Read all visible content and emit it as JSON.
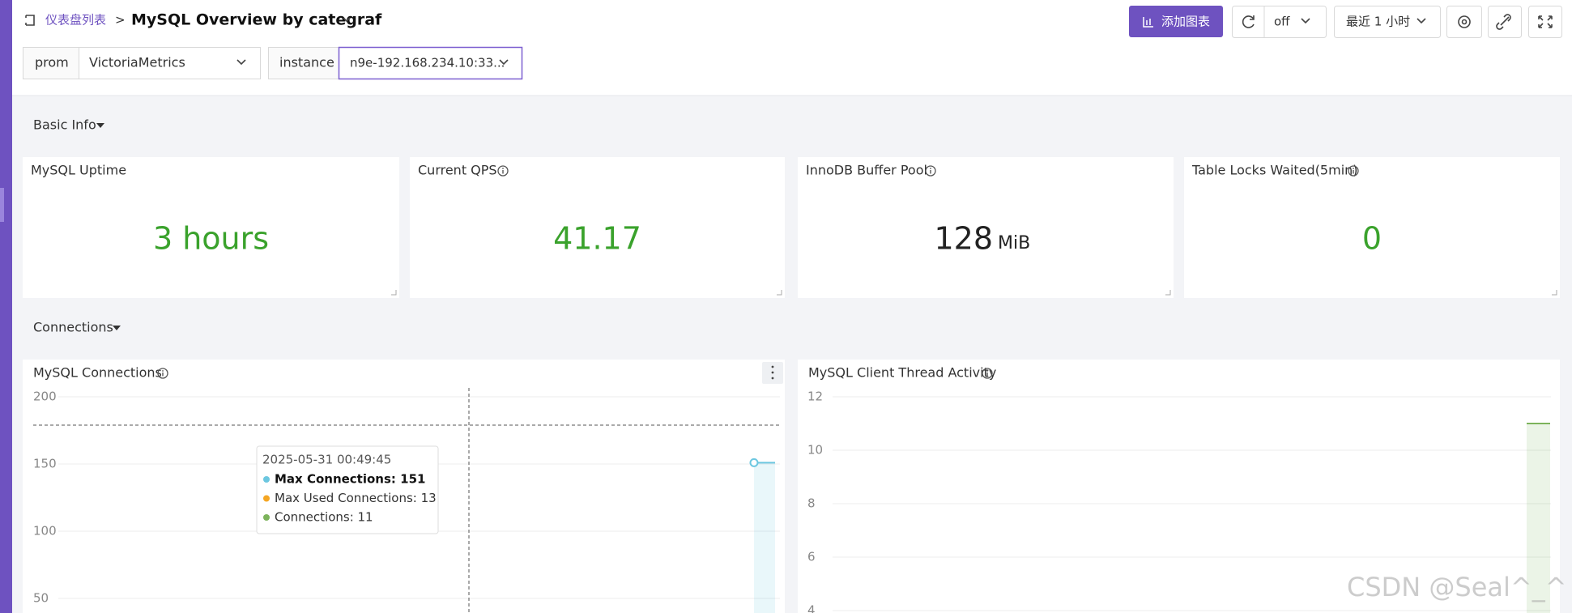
{
  "header": {
    "breadcrumb": "仪表盘列表",
    "separator": ">",
    "title": "MySQL Overview by categraf",
    "add_button": "添加图表",
    "refresh": "off",
    "time_range": "最近 1 小时"
  },
  "variables": [
    {
      "label": "prom",
      "value": "VictoriaMetrics"
    },
    {
      "label": "instance",
      "value": "n9e-192.168.234.10:33..."
    }
  ],
  "rows": [
    {
      "title": "Basic Info",
      "panels": [
        {
          "title": "MySQL Uptime",
          "value": "3 hours"
        },
        {
          "title": "Current QPS",
          "value": 41.17
        },
        {
          "title": "InnoDB Buffer Pool",
          "value": 128,
          "unit": "MiB"
        },
        {
          "title": "Table Locks Waited(5min)",
          "value": 0
        }
      ]
    },
    {
      "title": "Connections",
      "panels": [
        {
          "title": "MySQL Connections",
          "yticks": [
            200,
            150,
            100,
            50
          ],
          "series": [
            {
              "color": "#6cc7e0",
              "values": [
                151,
                151
              ]
            }
          ],
          "tooltip": {
            "time": "2025-05-31 00:49:45",
            "items": [
              {
                "text": "Max Connections: 151",
                "color": "#6cc7e0"
              },
              {
                "text": "Max Used Connections: 13",
                "color": "#f5a623"
              },
              {
                "text": "Connections: 11",
                "color": "#7cb35b"
              }
            ]
          }
        },
        {
          "title": "MySQL Client Thread Activity",
          "yticks": [
            12,
            10,
            8,
            6,
            4
          ],
          "series": [
            {
              "color": "#7cb35b",
              "values": [
                11,
                11
              ]
            }
          ]
        }
      ]
    }
  ],
  "watermark": "CSDN @Seal^_^"
}
